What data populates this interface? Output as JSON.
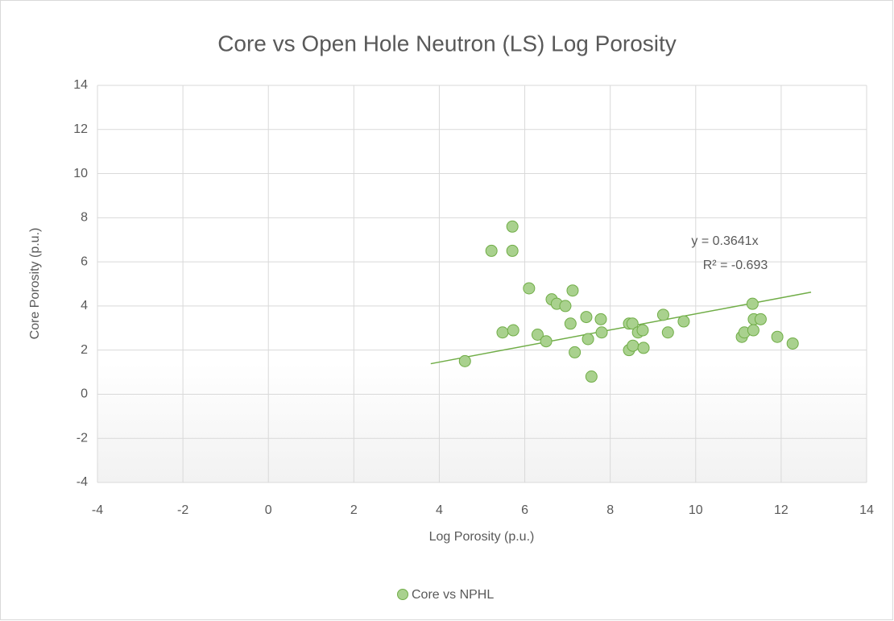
{
  "chart_data": {
    "type": "scatter",
    "title": "Core vs Open Hole Neutron (LS) Log Porosity",
    "x_label": "Log Porosity (p.u.)",
    "y_label": "Core Porosity (p.u.)",
    "series": [
      {
        "name": "Core vs NPHL",
        "color": "#a9d18e",
        "edge_color": "#70ad47",
        "x": [
          4.6,
          5.22,
          5.71,
          5.71,
          5.48,
          5.73,
          6.1,
          6.3,
          6.5,
          6.63,
          6.75,
          6.95,
          7.12,
          7.07,
          7.17,
          7.44,
          7.48,
          7.56,
          7.78,
          7.8,
          8.44,
          8.52,
          8.44,
          8.53,
          8.65,
          8.76,
          8.78,
          9.24,
          9.35,
          9.72,
          11.08,
          11.14,
          11.33,
          11.36,
          11.35,
          11.52,
          11.91,
          12.27
        ],
        "values": [
          1.5,
          6.5,
          7.6,
          6.5,
          2.8,
          2.9,
          4.8,
          2.7,
          2.4,
          4.3,
          4.1,
          4.0,
          4.7,
          3.2,
          1.9,
          3.5,
          2.5,
          0.8,
          3.4,
          2.8,
          3.2,
          3.2,
          2.0,
          2.2,
          2.8,
          2.9,
          2.1,
          3.6,
          2.8,
          3.3,
          2.6,
          2.8,
          4.1,
          3.4,
          2.9,
          3.4,
          2.6,
          2.3
        ]
      }
    ],
    "trendline": {
      "equation": "y = 0.3641x",
      "r_squared": "R² = -0.693",
      "slope": 0.3641,
      "x_range": [
        3.8,
        12.7
      ]
    },
    "xlim": [
      -4,
      14
    ],
    "xticks": [
      -4,
      -2,
      0,
      2,
      4,
      6,
      8,
      10,
      12,
      14
    ],
    "ylim": [
      -4,
      14
    ],
    "yticks": [
      -4,
      -2,
      0,
      2,
      4,
      6,
      8,
      10,
      12,
      14
    ],
    "grid": true,
    "legend": "bottom"
  }
}
